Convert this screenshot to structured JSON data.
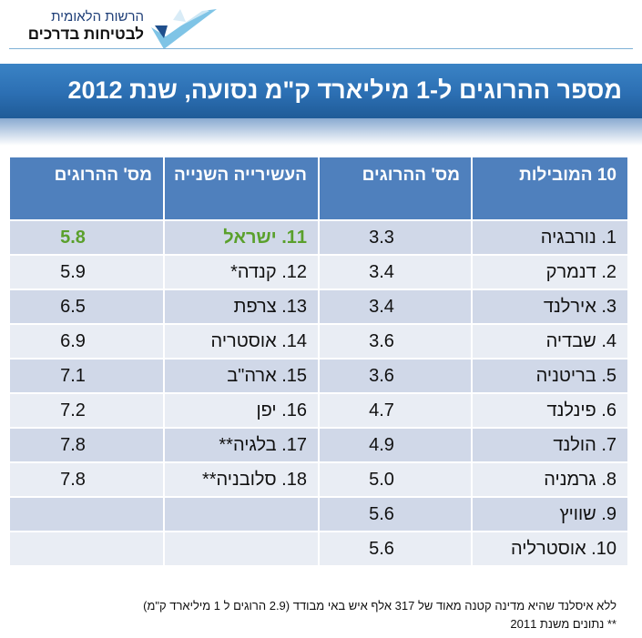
{
  "logo": {
    "line1": "הרשות הלאומית",
    "line2": "לבטיחות בדרכים"
  },
  "title": "מספר ההרוגים ל-1 מיליארד ק\"מ נסועה, שנת 2012",
  "table": {
    "headers": [
      "10 המובילות",
      "מס' ההרוגים",
      "העשירייה השנייה",
      "מס' ההרוגים"
    ],
    "rows": [
      [
        "1. נורבגיה",
        "3.3",
        "11. ישראל",
        "5.8"
      ],
      [
        "2. דנמרק",
        "3.4",
        "12. קנדה*",
        "5.9"
      ],
      [
        "3. אירלנד",
        "3.4",
        "13. צרפת",
        "6.5"
      ],
      [
        "4. שבדיה",
        "3.6",
        "14. אוסטריה",
        "6.9"
      ],
      [
        "5. בריטניה",
        "3.6",
        "15. ארה\"ב",
        "7.1"
      ],
      [
        "6. פינלנד",
        "4.7",
        "16. יפן",
        "7.2"
      ],
      [
        "7. הולנד",
        "4.9",
        "17. בלגיה**",
        "7.8"
      ],
      [
        "8. גרמניה",
        "5.0",
        "18. סלובניה**",
        "7.8"
      ],
      [
        "9. שוויץ",
        "5.6",
        "",
        ""
      ],
      [
        "10. אוסטרליה",
        "5.6",
        "",
        ""
      ]
    ],
    "highlight_color": "#5aa02c"
  },
  "footnotes": {
    "line1": "ללא איסלנד שהיא מדינה קטנה מאוד של 317 אלף איש באי מבודד (2.9 הרוגים ל 1 מיליארד ק\"מ)",
    "line2": "** נתונים משנת 2011"
  },
  "colors": {
    "header_bg": "#4f80bd",
    "row_dark": "#d0d8e8",
    "row_light": "#e9edf4",
    "banner": "#2c6fb3"
  }
}
